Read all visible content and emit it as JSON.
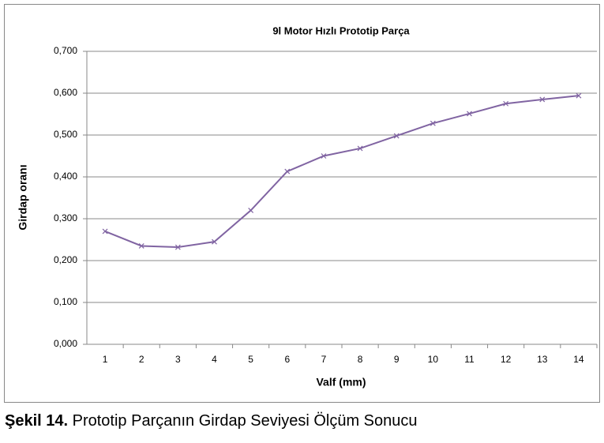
{
  "chart_data": {
    "type": "line",
    "title": "9l Motor Hızlı Prototip Parça",
    "x_label": "Valf (mm)",
    "y_label": "Girdap oranı",
    "categories": [
      "1",
      "2",
      "3",
      "4",
      "5",
      "6",
      "7",
      "8",
      "9",
      "10",
      "11",
      "12",
      "13",
      "14"
    ],
    "series": [
      {
        "name": "Girdap oranı",
        "color": "#8064a2",
        "values": [
          0.27,
          0.235,
          0.232,
          0.245,
          0.32,
          0.413,
          0.45,
          0.468,
          0.498,
          0.528,
          0.551,
          0.575,
          0.585,
          0.594
        ]
      }
    ],
    "ylim": [
      0,
      0.7
    ],
    "yticks": [
      {
        "value": 0,
        "label": "0,000"
      },
      {
        "value": 0.1,
        "label": "0,100"
      },
      {
        "value": 0.2,
        "label": "0,200"
      },
      {
        "value": 0.3,
        "label": "0,300"
      },
      {
        "value": 0.4,
        "label": "0,400"
      },
      {
        "value": 0.5,
        "label": "0,500"
      },
      {
        "value": 0.6,
        "label": "0,600"
      },
      {
        "value": 0.7,
        "label": "0,700"
      }
    ],
    "grid": true
  },
  "caption": {
    "label": "Şekil 14.",
    "text": "Prototip Parçanın Girdap Seviyesi Ölçüm Sonucu"
  }
}
